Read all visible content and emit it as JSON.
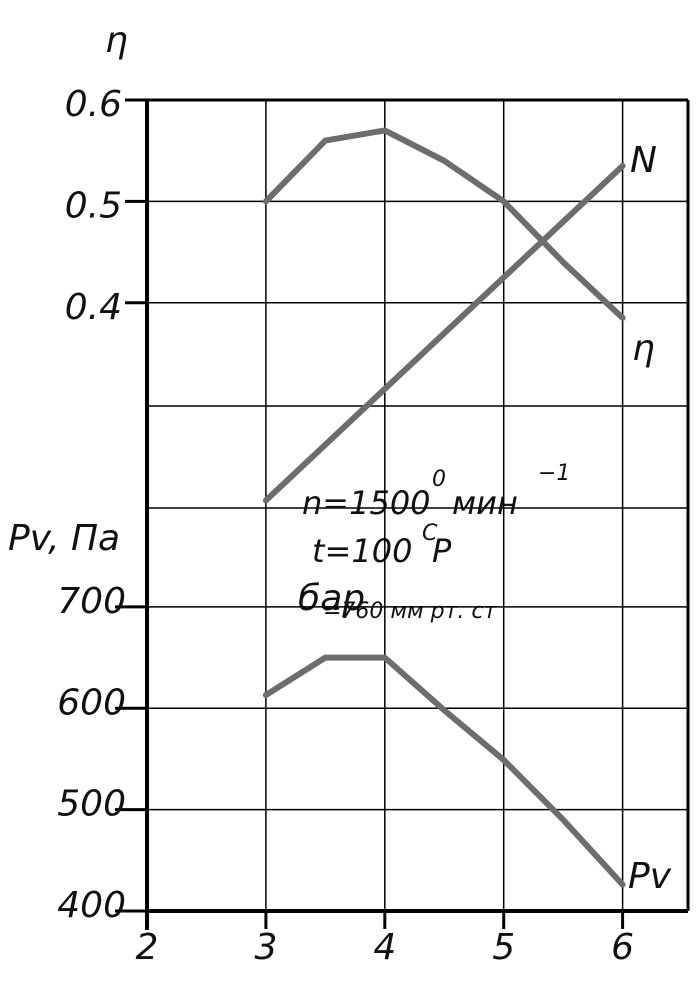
{
  "chart_data": {
    "type": "line",
    "eta_axis_label": "η",
    "pv_axis_label": "Pv, Па",
    "annotations": [
      "n=1500",
      "0",
      "мин",
      "−1",
      "t=100",
      "C",
      "P",
      "бар",
      "=760 мм рт. ст"
    ],
    "x": [
      3,
      3.5,
      4,
      4.5,
      5,
      5.5,
      6
    ],
    "xlim": [
      2,
      6.55
    ],
    "xticks": [
      2,
      3,
      4,
      5,
      6
    ],
    "ylim": [
      -0.2,
      0.6
    ],
    "yticks": [
      0.4,
      0.5,
      0.6
    ],
    "y2lim": [
      400,
      1200
    ],
    "y2ticks": [
      400,
      500,
      600,
      700
    ],
    "grid": true,
    "series": [
      {
        "name": "η",
        "color": "#6d6d6d",
        "values": [
          0.5,
          0.56,
          0.57,
          0.54,
          0.5,
          0.44,
          0.385
        ]
      },
      {
        "name": "N",
        "color": "#6d6d6d",
        "values": [
          0.205,
          0.26,
          0.315,
          0.37,
          0.425,
          0.48,
          0.535
        ]
      },
      {
        "name": "Pv",
        "color": "#6d6d6d",
        "axis": "y2",
        "values": [
          613,
          650,
          650,
          598,
          549,
          490,
          426
        ]
      }
    ]
  }
}
